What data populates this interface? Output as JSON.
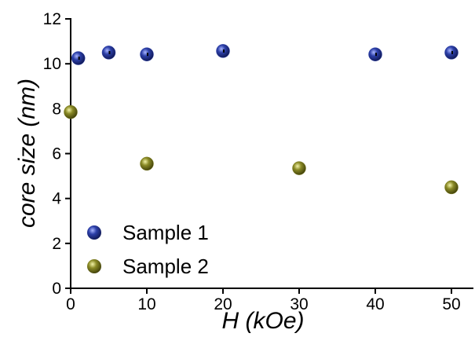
{
  "chart_data": {
    "type": "scatter",
    "title": "",
    "xlabel": {
      "italic": "H",
      "unit": " (kOe)"
    },
    "ylabel": "core size (nm)",
    "xlim": [
      0,
      53
    ],
    "ylim": [
      0,
      12
    ],
    "x_ticks": [
      0,
      10,
      20,
      30,
      40,
      50
    ],
    "y_ticks": [
      0,
      2,
      4,
      6,
      8,
      10,
      12
    ],
    "grid": false,
    "legend_position": "bottom-left",
    "series": [
      {
        "name": "Sample 1",
        "color": "#2c3fa8",
        "points": [
          {
            "x": 1,
            "y": 10.25
          },
          {
            "x": 5,
            "y": 10.5
          },
          {
            "x": 10,
            "y": 10.42
          },
          {
            "x": 20,
            "y": 10.57
          },
          {
            "x": 40,
            "y": 10.42
          },
          {
            "x": 50,
            "y": 10.5
          }
        ]
      },
      {
        "name": "Sample 2",
        "color": "#7e7e22",
        "points": [
          {
            "x": 0,
            "y": 7.85
          },
          {
            "x": 10,
            "y": 5.55
          },
          {
            "x": 30,
            "y": 5.35
          },
          {
            "x": 50,
            "y": 4.5
          }
        ]
      }
    ]
  }
}
